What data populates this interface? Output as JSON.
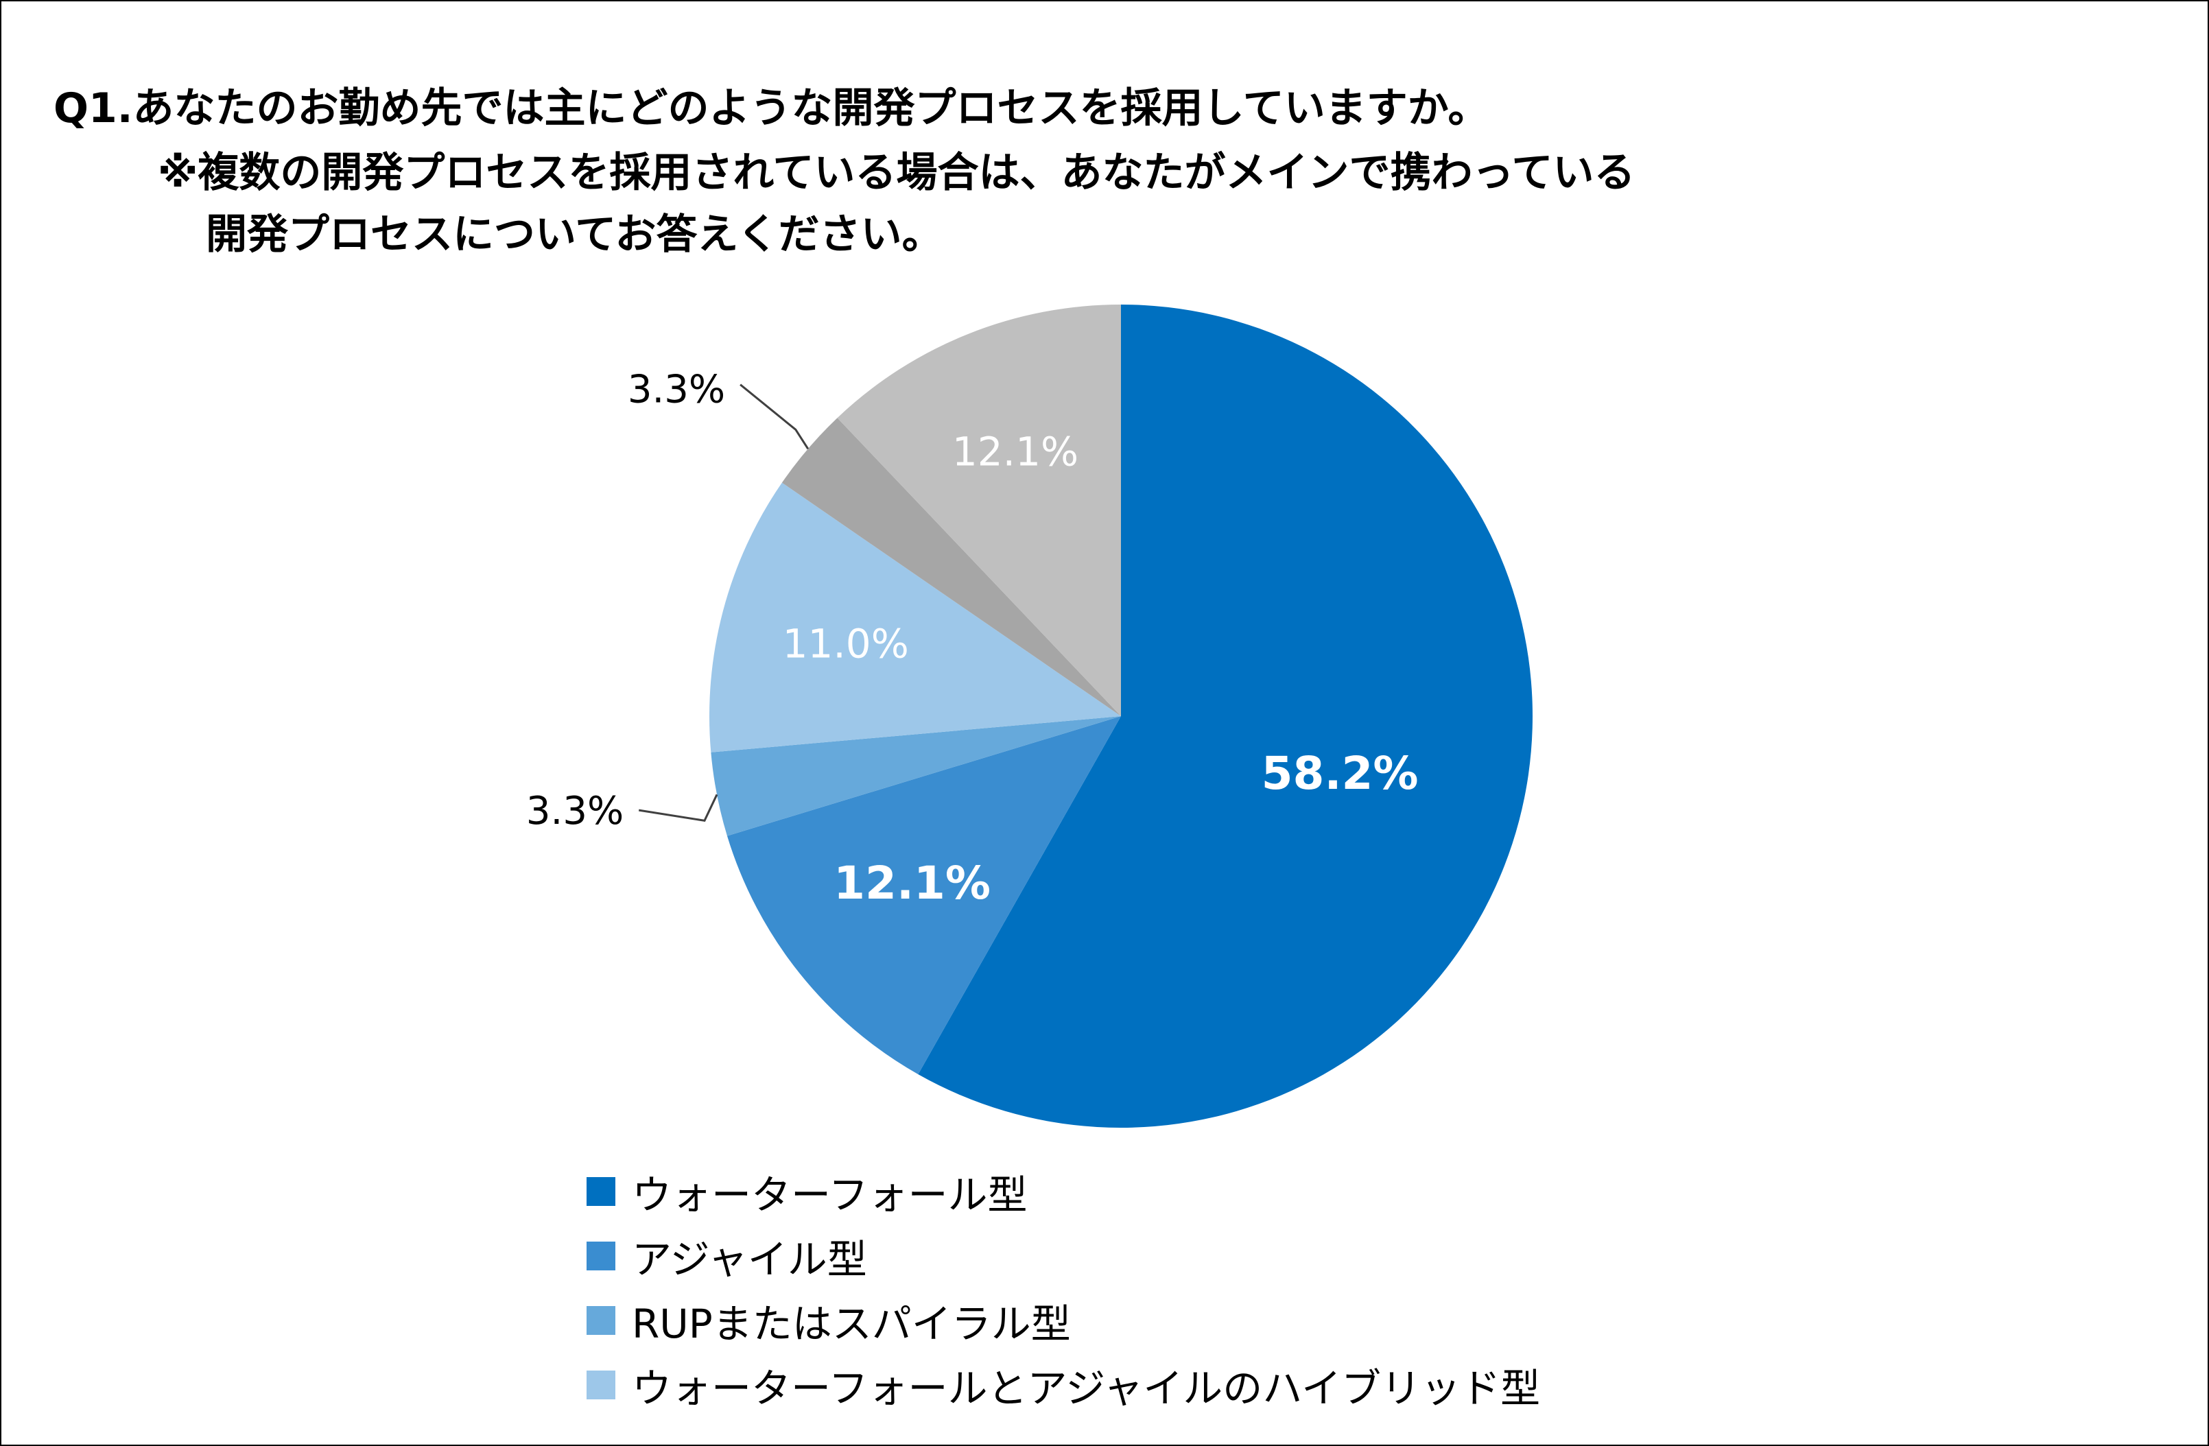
{
  "chart_data": {
    "type": "pie",
    "title": [
      "Q1.あなたのお勤め先では主にどのような開発プロセスを採用していますか。",
      "※複数の開発プロセスを採用されている場合は、あなたがメインで携わっている",
      "開発プロセスについてお答えください。"
    ],
    "slices": [
      {
        "label": "ウォーターフォール型",
        "value": 58.2,
        "display": "58.2%",
        "color": "#0070C0"
      },
      {
        "label": "アジャイル型",
        "value": 12.1,
        "display": "12.1%",
        "color": "#3A8DD0"
      },
      {
        "label": "RUPまたはスパイラル型",
        "value": 3.3,
        "display": "3.3%",
        "color": "#66A9DB"
      },
      {
        "label": "ウォーターフォールとアジャイルのハイブリッド型",
        "value": 11.0,
        "display": "11.0%",
        "color": "#9DC7E9"
      },
      {
        "label": "",
        "value": 3.3,
        "display": "3.3%",
        "color": "#A6A6A6"
      },
      {
        "label": "",
        "value": 12.1,
        "display": "12.1%",
        "color": "#BFBFBF"
      }
    ],
    "legend": [
      "ウォーターフォール型",
      "アジャイル型",
      "RUPまたはスパイラル型",
      "ウォーターフォールとアジャイルのハイブリッド型"
    ],
    "legend_position": "bottom"
  }
}
